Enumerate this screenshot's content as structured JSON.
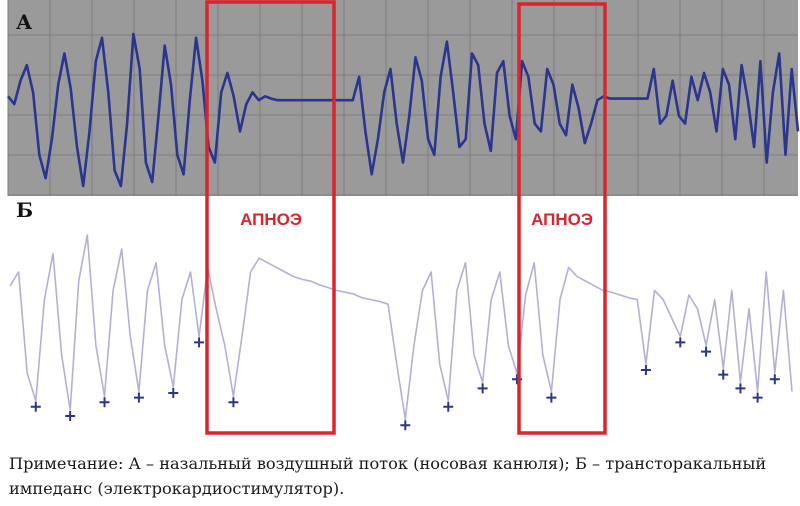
{
  "chart_data": [
    {
      "type": "line",
      "panel_label": "А",
      "description_text": "",
      "background": "#9a9a9a",
      "grid": true,
      "line_color": "#2a3590",
      "series": [
        {
          "values": [
            0.15,
            0.05,
            0.35,
            0.55,
            0.2,
            -0.6,
            -0.9,
            -0.4,
            0.3,
            0.7,
            0.25,
            -0.5,
            -1.0,
            -0.3,
            0.6,
            0.9,
            0.2,
            -0.8,
            -1.0,
            -0.2,
            0.95,
            0.5,
            -0.7,
            -0.95,
            -0.1,
            0.8,
            0.3,
            -0.6,
            -0.85,
            0.1,
            0.9,
            0.35,
            -0.5,
            -0.7,
            0.2,
            0.45,
            0.15,
            -0.3,
            0.05,
            0.2,
            0.1,
            0.15,
            0.12,
            0.1,
            0.1,
            0.1,
            0.1,
            0.1,
            0.1,
            0.1,
            0.1,
            0.1,
            0.1,
            0.1,
            0.1,
            0.1,
            0.4,
            -0.3,
            -0.85,
            -0.4,
            0.2,
            0.5,
            -0.2,
            -0.7,
            -0.1,
            0.65,
            0.35,
            -0.4,
            -0.6,
            0.4,
            0.85,
            0.2,
            -0.5,
            -0.4,
            0.7,
            0.55,
            -0.2,
            -0.55,
            0.45,
            0.6,
            -0.1,
            -0.4,
            0.6,
            0.4,
            -0.2,
            -0.3,
            0.5,
            0.3,
            -0.2,
            -0.35,
            0.3,
            0.0,
            -0.45,
            -0.2,
            0.1,
            0.15,
            0.12,
            0.12,
            0.12,
            0.12,
            0.12,
            0.12,
            0.12,
            0.5,
            -0.2,
            -0.1,
            0.35,
            -0.1,
            -0.2,
            0.4,
            0.1,
            0.45,
            0.2,
            -0.3,
            0.5,
            0.3,
            -0.4,
            0.55,
            0.1,
            -0.5,
            0.6,
            -0.7,
            0.2,
            0.7,
            -0.6,
            0.5,
            -0.3
          ]
        }
      ]
    },
    {
      "type": "line",
      "panel_label": "Б",
      "background": "#ffffff",
      "grid": false,
      "line_color": "#b3b0d6",
      "marker_color": "#2a3590",
      "series": [
        {
          "values": [
            0.35,
            0.5,
            -0.6,
            -0.9,
            0.2,
            0.7,
            -0.4,
            -1.0,
            0.4,
            0.9,
            -0.3,
            -0.85,
            0.3,
            0.75,
            -0.2,
            -0.8,
            0.3,
            0.6,
            -0.3,
            -0.75,
            0.2,
            0.5,
            -0.2,
            0.55,
            0.1,
            -0.3,
            -0.85,
            -0.2,
            0.5,
            0.65,
            0.6,
            0.55,
            0.5,
            0.45,
            0.42,
            0.4,
            0.36,
            0.33,
            0.3,
            0.28,
            0.26,
            0.22,
            0.2,
            0.18,
            0.15,
            -0.5,
            -1.1,
            -0.3,
            0.3,
            0.5,
            -0.5,
            -0.9,
            0.3,
            0.6,
            -0.4,
            -0.7,
            0.2,
            0.5,
            -0.3,
            -0.6,
            0.25,
            0.6,
            -0.4,
            -0.8,
            0.2,
            0.55,
            0.45,
            0.4,
            0.35,
            0.3,
            0.28,
            0.25,
            0.22,
            0.2,
            -0.5,
            0.3,
            0.2,
            0.0,
            -0.2,
            0.25,
            0.1,
            -0.3,
            0.2,
            -0.55,
            0.3,
            -0.7,
            0.1,
            -0.8,
            0.5,
            -0.6,
            0.3,
            -0.8
          ]
        }
      ]
    }
  ],
  "apnea_label": "АПНОЭ",
  "note": "Примечание: А – назальный воздушный поток (носовая канюля); Б – трансторакальный импеданс (электрокардиостимулятор).",
  "colors": {
    "apnea_box": "#d9252b"
  }
}
